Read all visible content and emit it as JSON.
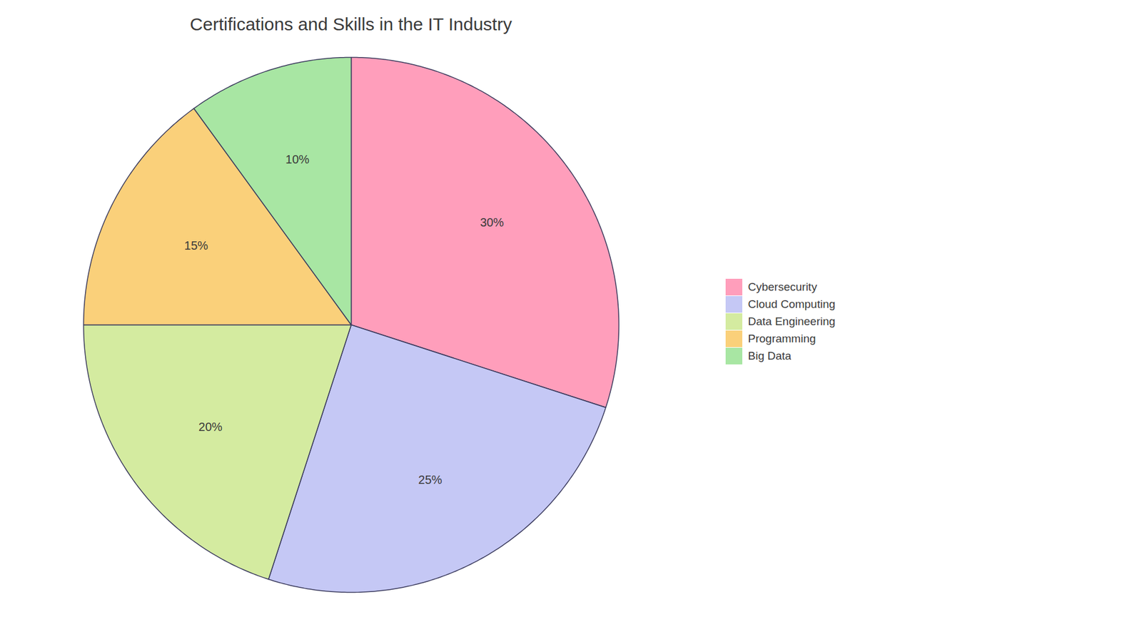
{
  "chart_data": {
    "type": "pie",
    "title": "Certifications and Skills in the IT Industry",
    "categories": [
      "Cybersecurity",
      "Cloud Computing",
      "Data Engineering",
      "Programming",
      "Big Data"
    ],
    "values": [
      30,
      25,
      20,
      15,
      10
    ],
    "value_labels": [
      "30%",
      "25%",
      "20%",
      "15%",
      "10%"
    ],
    "colors": [
      "#FF9EBB",
      "#C5C8F5",
      "#D4EBA0",
      "#FAD07A",
      "#A8E6A3"
    ],
    "data_labels": true,
    "legend": "right"
  }
}
